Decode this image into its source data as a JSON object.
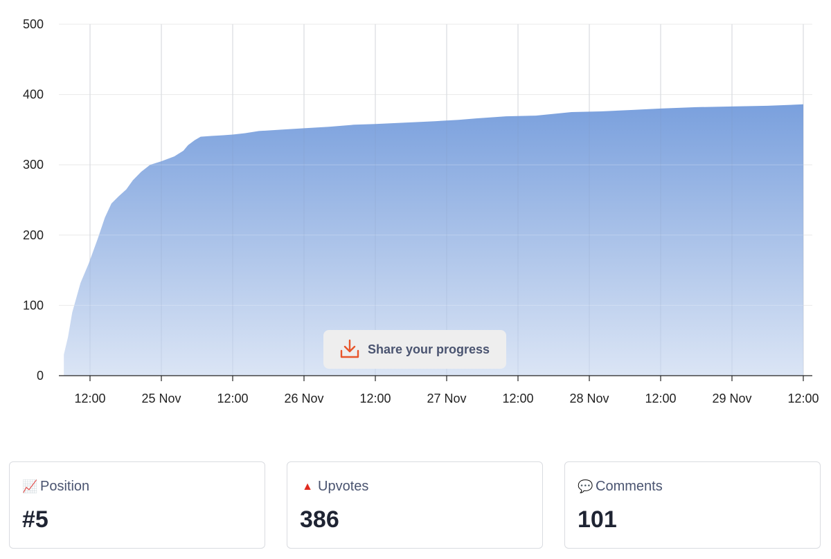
{
  "chart_data": {
    "type": "area",
    "y_ticks": [
      0,
      100,
      200,
      300,
      400,
      500
    ],
    "ylim": [
      0,
      500
    ],
    "x_tick_labels": [
      "12:00",
      "25 Nov",
      "12:00",
      "26 Nov",
      "12:00",
      "27 Nov",
      "12:00",
      "28 Nov",
      "12:00",
      "29 Nov",
      "12:00"
    ],
    "grid": true,
    "color": "#7fa3df",
    "x_ticks_hours": [
      12,
      24,
      36,
      48,
      60,
      72,
      84,
      96,
      108,
      120,
      132
    ],
    "points": [
      [
        7.6,
        30
      ],
      [
        8.3,
        55
      ],
      [
        9.0,
        90
      ],
      [
        10.4,
        132
      ],
      [
        11.8,
        160
      ],
      [
        13.3,
        195
      ],
      [
        14.5,
        225
      ],
      [
        15.6,
        245
      ],
      [
        16.8,
        255
      ],
      [
        18.1,
        265
      ],
      [
        19.2,
        278
      ],
      [
        20.6,
        290
      ],
      [
        22.1,
        300
      ],
      [
        24.0,
        305
      ],
      [
        26.2,
        312
      ],
      [
        27.7,
        320
      ],
      [
        28.5,
        328
      ],
      [
        29.6,
        335
      ],
      [
        30.6,
        340
      ],
      [
        32.4,
        341
      ],
      [
        34.4,
        342
      ],
      [
        36.0,
        343
      ],
      [
        38.1,
        345
      ],
      [
        40.4,
        348
      ],
      [
        44.2,
        350
      ],
      [
        48.0,
        352
      ],
      [
        52.2,
        354
      ],
      [
        56.4,
        357
      ],
      [
        60.0,
        358
      ],
      [
        65.0,
        360
      ],
      [
        70.0,
        362
      ],
      [
        74.0,
        364
      ],
      [
        77.0,
        366
      ],
      [
        82.0,
        369
      ],
      [
        87.0,
        370
      ],
      [
        93.0,
        375
      ],
      [
        98.0,
        376
      ],
      [
        103.0,
        378
      ],
      [
        108.0,
        380
      ],
      [
        114.0,
        382
      ],
      [
        120.0,
        383
      ],
      [
        126.0,
        384
      ],
      [
        132.0,
        386
      ]
    ]
  },
  "share": {
    "label": "Share your progress",
    "icon": "download-icon",
    "icon_color": "#e8552a"
  },
  "stats": [
    {
      "icon": "chart-increasing-icon",
      "glyph": "📈",
      "label": "Position",
      "value": "#5"
    },
    {
      "icon": "red-triangle-up-icon",
      "glyph": "▲",
      "label": "Upvotes",
      "value": "386"
    },
    {
      "icon": "speech-bubble-icon",
      "glyph": "💬",
      "label": "Comments",
      "value": "101"
    }
  ]
}
